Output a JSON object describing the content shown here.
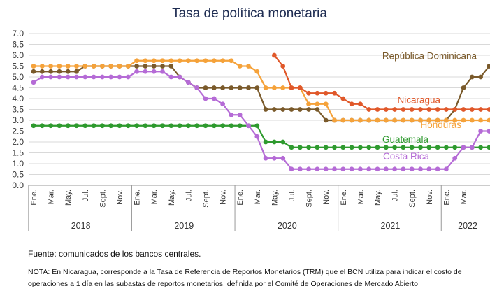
{
  "chart_data": {
    "type": "line",
    "title": "Tasa de política monetaria",
    "ylim": [
      0,
      7
    ],
    "yticks": [
      "0.0",
      "0.5",
      "1.0",
      "1.5",
      "2.0",
      "2.5",
      "3.0",
      "3.5",
      "4.0",
      "4.5",
      "5.0",
      "5.5",
      "6.0",
      "6.5",
      "7.0"
    ],
    "x_month_labels": [
      "Ene.",
      "Mar.",
      "May.",
      "Jul.",
      "Sept.",
      "Nov.",
      "Ene.",
      "Mar.",
      "May.",
      "Jul.",
      "Sept.",
      "Nov.",
      "Ene.",
      "Mar.",
      "May.",
      "Jul.",
      "Sept.",
      "Nov.",
      "Ene.",
      "Mar.",
      "May.",
      "Jul.",
      "Sept.",
      "Nov.",
      "Ene.",
      "Mar."
    ],
    "years": [
      "2018",
      "2019",
      "2020",
      "2021",
      "2022"
    ],
    "grid": true,
    "series": [
      {
        "name": "República Dominicana",
        "color": "#7a5a2b",
        "start": 0,
        "values": [
          5.25,
          5.25,
          5.25,
          5.25,
          5.25,
          5.25,
          5.5,
          5.5,
          5.5,
          5.5,
          5.5,
          5.5,
          5.5,
          5.5,
          5.5,
          5.5,
          5.5,
          5.0,
          4.75,
          4.5,
          4.5,
          4.5,
          4.5,
          4.5,
          4.5,
          4.5,
          4.5,
          3.5,
          3.5,
          3.5,
          3.5,
          3.5,
          3.5,
          3.5,
          3.0,
          3.0,
          3.0,
          3.0,
          3.0,
          3.0,
          3.0,
          3.0,
          3.0,
          3.0,
          3.0,
          3.0,
          3.0,
          3.0,
          3.0,
          3.5,
          4.5,
          5.0,
          5.0,
          5.5
        ]
      },
      {
        "name": "Honduras",
        "color": "#f5a23a",
        "start": 0,
        "values": [
          5.5,
          5.5,
          5.5,
          5.5,
          5.5,
          5.5,
          5.5,
          5.5,
          5.5,
          5.5,
          5.5,
          5.5,
          5.75,
          5.75,
          5.75,
          5.75,
          5.75,
          5.75,
          5.75,
          5.75,
          5.75,
          5.75,
          5.75,
          5.75,
          5.5,
          5.5,
          5.25,
          4.5,
          4.5,
          4.5,
          4.5,
          4.5,
          3.75,
          3.75,
          3.75,
          3.0,
          3.0,
          3.0,
          3.0,
          3.0,
          3.0,
          3.0,
          3.0,
          3.0,
          3.0,
          3.0,
          3.0,
          3.0,
          3.0,
          3.0,
          3.0,
          3.0,
          3.0,
          3.0
        ]
      },
      {
        "name": "Nicaragua",
        "color": "#e0582a",
        "start": 28,
        "values": [
          6.0,
          5.5,
          4.5,
          4.5,
          4.25,
          4.25,
          4.25,
          4.25,
          4.0,
          3.75,
          3.75,
          3.5,
          3.5,
          3.5,
          3.5,
          3.5,
          3.5,
          3.5,
          3.5,
          3.5,
          3.5,
          3.5,
          3.5,
          3.5,
          3.5,
          3.5
        ]
      },
      {
        "name": "Guatemala",
        "color": "#2e9a2e",
        "start": 0,
        "values": [
          2.75,
          2.75,
          2.75,
          2.75,
          2.75,
          2.75,
          2.75,
          2.75,
          2.75,
          2.75,
          2.75,
          2.75,
          2.75,
          2.75,
          2.75,
          2.75,
          2.75,
          2.75,
          2.75,
          2.75,
          2.75,
          2.75,
          2.75,
          2.75,
          2.75,
          2.75,
          2.75,
          2.0,
          2.0,
          2.0,
          1.75,
          1.75,
          1.75,
          1.75,
          1.75,
          1.75,
          1.75,
          1.75,
          1.75,
          1.75,
          1.75,
          1.75,
          1.75,
          1.75,
          1.75,
          1.75,
          1.75,
          1.75,
          1.75,
          1.75,
          1.75,
          1.75,
          1.75,
          1.75
        ]
      },
      {
        "name": "Costa Rica",
        "color": "#b56bd6",
        "start": 0,
        "values": [
          4.75,
          5.0,
          5.0,
          5.0,
          5.0,
          5.0,
          5.0,
          5.0,
          5.0,
          5.0,
          5.0,
          5.0,
          5.25,
          5.25,
          5.25,
          5.25,
          5.0,
          5.0,
          4.75,
          4.5,
          4.0,
          4.0,
          3.75,
          3.25,
          3.25,
          2.75,
          2.25,
          1.25,
          1.25,
          1.25,
          0.75,
          0.75,
          0.75,
          0.75,
          0.75,
          0.75,
          0.75,
          0.75,
          0.75,
          0.75,
          0.75,
          0.75,
          0.75,
          0.75,
          0.75,
          0.75,
          0.75,
          0.75,
          0.75,
          1.25,
          1.75,
          1.75,
          2.5,
          2.5
        ]
      }
    ]
  },
  "source": "Fuente: comunicados de los bancos centrales.",
  "note": "NOTA: En Nicaragua, corresponde a la Tasa de Referencia de Reportos Monetarios (TRM) que el BCN utiliza para indicar el costo de operaciones a 1 día en las subastas de reportos monetarios, definida por el Comité de Operaciones de Mercado Abierto"
}
